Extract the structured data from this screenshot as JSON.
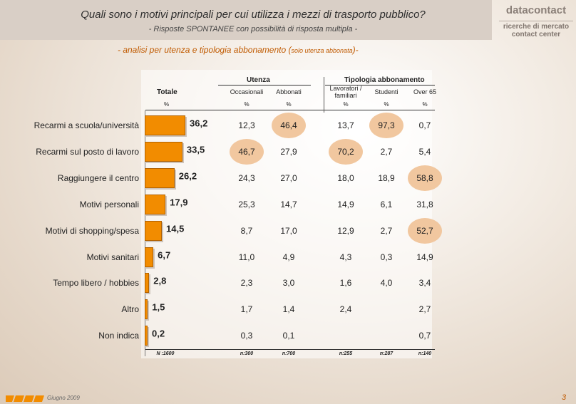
{
  "header": {
    "title": "Quali sono i motivi principali per cui utilizza i mezzi di trasporto pubblico?",
    "subtitle": "- Risposte SPONTANEE con possibilità di risposta multipla -"
  },
  "logo": {
    "brand_a": "data",
    "brand_b": "contact",
    "line2": "ricerche di mercato",
    "line3": "contact center"
  },
  "analysis": {
    "main": "- analisi per utenza e tipologia abbonamento (",
    "small": "solo utenza abbonata",
    "end": ")-"
  },
  "table": {
    "group_utenza": "Utenza",
    "group_tipologia": "Tipologia abbonamento",
    "totale": "Totale",
    "pct": "%",
    "columns": [
      "Occasionali",
      "Abbonati",
      "Lavoratori / familiari",
      "Studenti",
      "Over 65"
    ],
    "column_units": [
      "%",
      "%",
      "%",
      "%",
      "%"
    ],
    "n_total": "N :1600",
    "n_columns": [
      "n:300",
      "n:700",
      "n:255",
      "n:287",
      "n:140"
    ]
  },
  "chart_data": {
    "type": "bar",
    "title": "Quali sono i motivi principali per cui utilizza i mezzi di trasporto pubblico?",
    "categories": [
      "Recarmi a scuola/università",
      "Recarmi sul posto di lavoro",
      "Raggiungere il centro",
      "Motivi personali",
      "Motivi di shopping/spesa",
      "Motivi sanitari",
      "Tempo libero / hobbies",
      "Altro",
      "Non indica"
    ],
    "values": [
      36.2,
      33.5,
      26.2,
      17.9,
      14.5,
      6.7,
      2.8,
      1.5,
      0.2
    ],
    "value_labels": [
      "36,2",
      "33,5",
      "26,2",
      "17,9",
      "14,5",
      "6,7",
      "2,8",
      "1,5",
      "0,2"
    ],
    "unit": "%",
    "xlim": [
      0,
      40
    ],
    "table_rows": [
      [
        "12,3",
        "46,4",
        "13,7",
        "97,3",
        "0,7"
      ],
      [
        "46,7",
        "27,9",
        "70,2",
        "2,7",
        "5,4"
      ],
      [
        "24,3",
        "27,0",
        "18,0",
        "18,9",
        "58,8"
      ],
      [
        "25,3",
        "14,7",
        "14,9",
        "6,1",
        "31,8"
      ],
      [
        "8,7",
        "17,0",
        "12,9",
        "2,7",
        "52,7"
      ],
      [
        "11,0",
        "4,9",
        "4,3",
        "0,3",
        "14,9"
      ],
      [
        "2,3",
        "3,0",
        "1,6",
        "4,0",
        "3,4"
      ],
      [
        "1,7",
        "1,4",
        "2,4",
        "",
        "2,7"
      ],
      [
        "0,3",
        "0,1",
        "",
        "",
        "0,7"
      ]
    ],
    "highlighted": [
      [
        0,
        1
      ],
      [
        0,
        3
      ],
      [
        1,
        0
      ],
      [
        1,
        2
      ],
      [
        2,
        4
      ],
      [
        4,
        4
      ]
    ]
  },
  "footer": {
    "date": "Giugno 2009",
    "page": "3"
  },
  "colors": {
    "bar": "#f28c00",
    "highlight": "#f1c79f",
    "accent": "#c05a00"
  }
}
